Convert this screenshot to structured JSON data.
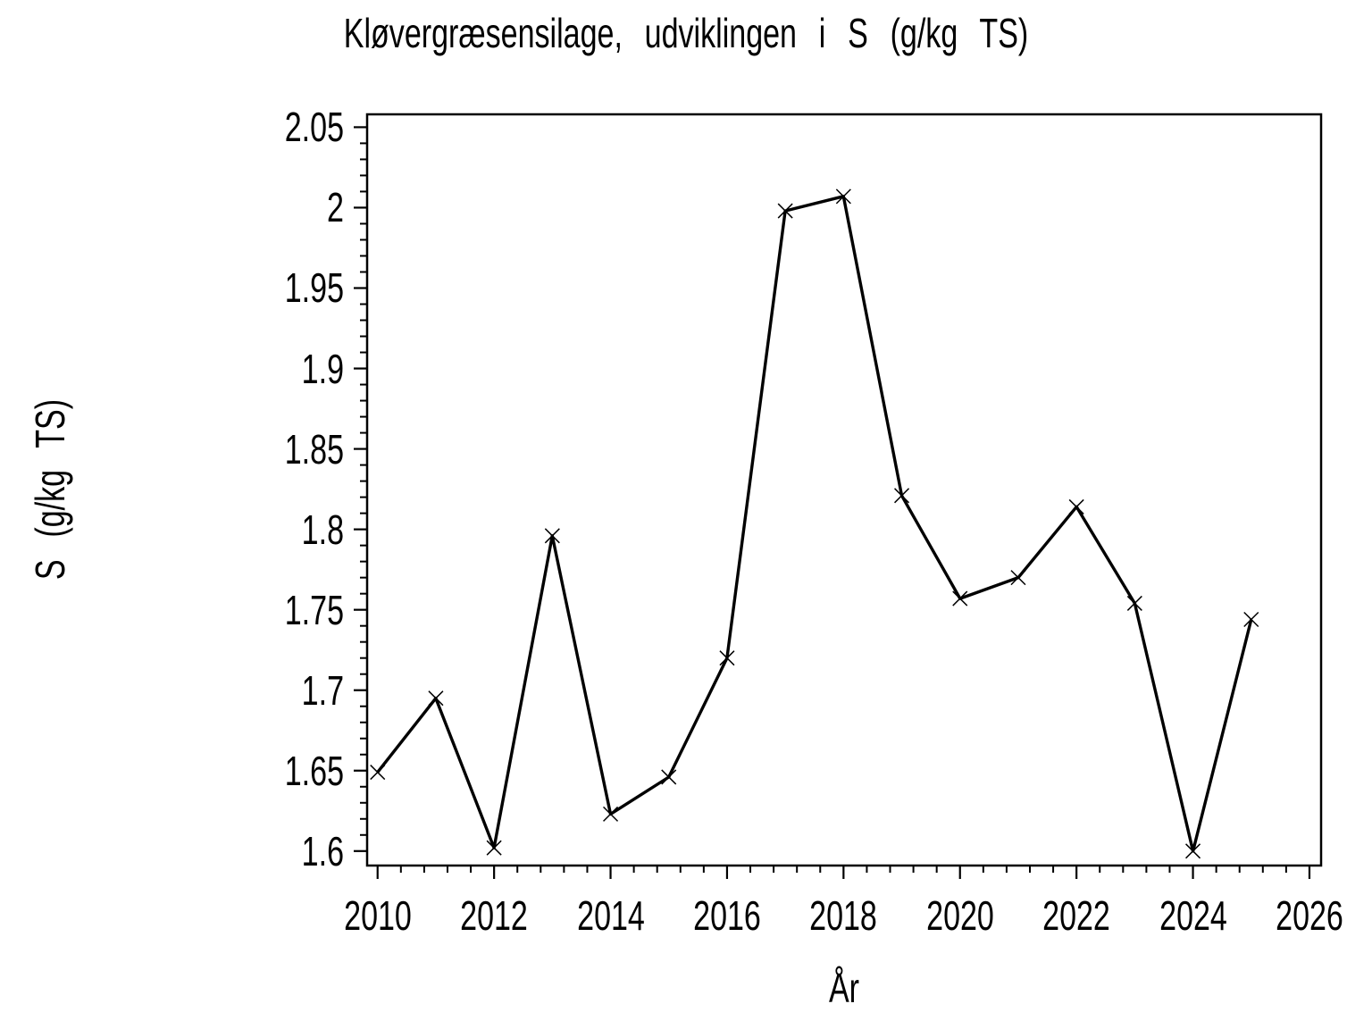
{
  "page": {
    "background": "#ffffff",
    "foreground": "#000000"
  },
  "chart_data": {
    "type": "line",
    "title": "Kløvergræsensilage, udviklingen i S (g/kg TS)",
    "xlabel": "År",
    "ylabel": "S (g/kg TS)",
    "x": [
      2010,
      2011,
      2012,
      2013,
      2014,
      2015,
      2016,
      2017,
      2018,
      2019,
      2020,
      2021,
      2022,
      2023,
      2024,
      2025
    ],
    "values": [
      1.649,
      1.695,
      1.602,
      1.796,
      1.623,
      1.646,
      1.72,
      1.998,
      2.007,
      1.821,
      1.757,
      1.77,
      1.814,
      1.754,
      1.6,
      1.744
    ],
    "xlim": [
      2009.82,
      2026.2
    ],
    "ylim": [
      1.591,
      2.058
    ],
    "x_ticks": [
      2010,
      2012,
      2014,
      2016,
      2018,
      2020,
      2022,
      2024,
      2026
    ],
    "x_tick_labels": [
      "2010",
      "2012",
      "2014",
      "2016",
      "2018",
      "2020",
      "2022",
      "2024",
      "2026"
    ],
    "y_ticks": [
      1.6,
      1.65,
      1.7,
      1.75,
      1.8,
      1.85,
      1.9,
      1.95,
      2.0,
      2.05
    ],
    "y_tick_labels": [
      "1.6",
      "1.65",
      "1.7",
      "1.75",
      "1.8",
      "1.85",
      "1.9",
      "1.95",
      "2",
      "2.05"
    ],
    "minor_ticks_between_majors": 4,
    "grid": false,
    "legend_position": "none",
    "marker": "x",
    "line_color": "#000000",
    "marker_color": "#000000",
    "frame": true
  }
}
